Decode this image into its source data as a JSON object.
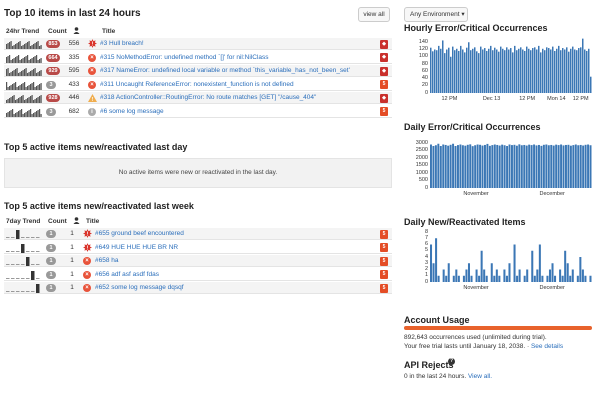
{
  "top10": {
    "title": "Top 10 items in last 24 hours",
    "view_all": "view all",
    "columns": {
      "trend": "24hr Trend",
      "count": "Count",
      "title": "Title"
    },
    "rows": [
      {
        "badge": "853",
        "count": "556",
        "level": "critical",
        "title": "#3 Hull breach!",
        "platform": "ruby"
      },
      {
        "badge": "664",
        "count": "335",
        "level": "error",
        "title": "#315 NoMethodError: undefined method `[]' for nil:NilClass",
        "platform": "ruby"
      },
      {
        "badge": "929",
        "count": "595",
        "level": "error",
        "title": "#317 NameError: undefined local variable or method `this_variable_has_not_been_set'",
        "platform": "ruby"
      },
      {
        "badge": "3",
        "count": "433",
        "level": "error",
        "title": "#311 Uncaught ReferenceError: nonexistent_function is not defined",
        "platform": "html5"
      },
      {
        "badge": "928",
        "count": "446",
        "level": "warning",
        "title": "#318 ActionController::RoutingError: No route matches [GET] \"/cause_404\"",
        "platform": "ruby"
      },
      {
        "badge": "3",
        "count": "682",
        "level": "info",
        "title": "#6 some log message",
        "platform": "html5"
      }
    ]
  },
  "top5_day": {
    "title": "Top 5 active items new/reactivated last day",
    "empty_text": "No active items were new or reactivated in the last day."
  },
  "top5_week": {
    "title": "Top 5 active items new/reactivated last week",
    "columns": {
      "trend": "7day Trend",
      "count": "Count",
      "title": "Title"
    },
    "rows": [
      {
        "badge": "1",
        "count": "1",
        "level": "critical",
        "title": "#655 ground beef encountered",
        "platform": "html5"
      },
      {
        "badge": "1",
        "count": "1",
        "level": "critical",
        "title": "#649 HUE HUE HUE BR NR",
        "platform": "html5"
      },
      {
        "badge": "1",
        "count": "1",
        "level": "error",
        "title": "#658 ha",
        "platform": "html5"
      },
      {
        "badge": "1",
        "count": "1",
        "level": "error",
        "title": "#656 adf asf asdf fdas",
        "platform": "html5"
      },
      {
        "badge": "1",
        "count": "1",
        "level": "error",
        "title": "#652 some log message dqsqf",
        "platform": "html5"
      }
    ]
  },
  "environment": {
    "label": "Any Environment",
    "caret": "▾"
  },
  "chart_data": [
    {
      "type": "bar",
      "title": "Hourly Error/Critical Occurrences",
      "ylim": [
        0,
        160
      ],
      "yticks": [
        0,
        20,
        40,
        60,
        80,
        100,
        120,
        140
      ],
      "xticks": [
        "12 PM",
        "Dec 13",
        "12 PM",
        "Mon 14",
        "12 PM"
      ],
      "values": [
        125,
        115,
        120,
        118,
        130,
        122,
        145,
        110,
        120,
        125,
        100,
        128,
        118,
        122,
        116,
        130,
        120,
        112,
        125,
        140,
        118,
        122,
        126,
        115,
        110,
        128,
        120,
        124,
        116,
        122,
        130,
        118,
        125,
        120,
        114,
        128,
        122,
        118,
        126,
        120,
        124,
        112,
        130,
        118,
        122,
        126,
        120,
        116,
        128,
        122,
        118,
        124,
        126,
        120,
        130,
        112,
        122,
        118,
        126,
        124,
        120,
        128,
        116,
        122,
        130,
        118,
        124,
        120,
        126,
        114,
        122,
        128,
        120,
        118,
        124,
        126,
        150,
        120,
        116,
        122,
        45
      ]
    },
    {
      "type": "bar",
      "title": "Daily Error/Critical Occurrences",
      "ylim": [
        0,
        3000
      ],
      "yticks": [
        0,
        500,
        1000,
        1500,
        2000,
        2500,
        3000
      ],
      "xticks": [
        "November",
        "December"
      ],
      "values": [
        2900,
        2800,
        2850,
        2950,
        2800,
        2900,
        2870,
        2820,
        2880,
        2950,
        2800,
        2860,
        2900,
        2850,
        2820,
        2880,
        2910,
        2790,
        2850,
        2900,
        2880,
        2830,
        2870,
        2940,
        2810,
        2860,
        2900,
        2870,
        2830,
        2890,
        2850,
        2800,
        2900,
        2860,
        2880,
        2820,
        2910,
        2850,
        2870,
        2830,
        2890,
        2860,
        2900,
        2840,
        2870,
        2810,
        2880,
        2900,
        2850,
        2870,
        2830,
        2890,
        2860,
        2900,
        2840,
        2870,
        2880,
        2820,
        2860,
        2900,
        2850,
        2870,
        2830,
        2880,
        2900,
        2850
      ]
    },
    {
      "type": "bar",
      "title": "Daily New/Reactivated Items",
      "ylim": [
        0,
        8
      ],
      "yticks": [
        0,
        1,
        2,
        3,
        4,
        5,
        6,
        7,
        8
      ],
      "xticks": [
        "November",
        "December"
      ],
      "values": [
        6,
        3,
        7,
        1,
        0,
        2,
        1,
        3,
        0,
        1,
        2,
        1,
        0,
        1,
        2,
        3,
        1,
        0,
        2,
        1,
        5,
        2,
        1,
        0,
        3,
        1,
        2,
        1,
        0,
        2,
        1,
        3,
        0,
        6,
        1,
        2,
        0,
        1,
        2,
        0,
        5,
        1,
        2,
        6,
        1,
        0,
        1,
        2,
        3,
        1,
        0,
        2,
        1,
        5,
        3,
        1,
        2,
        0,
        1,
        4,
        2,
        1,
        0,
        1
      ]
    }
  ],
  "account": {
    "title": "Account Usage",
    "bar_color": "#e8622c",
    "usage_pct": 100,
    "line1": "892,643 occurrences used (unlimited during trial).",
    "line2_prefix": "Your free trial lasts until January 18, 2038.",
    "line2_link": "See details"
  },
  "api_rejects": {
    "title": "API Rejects",
    "help_icon": "?",
    "text_prefix": "0 in the last 24 hours.",
    "link": "View all."
  },
  "colors": {
    "bar": "#3b77b5",
    "link": "#2a6ebb",
    "badge_red": "#b94a48",
    "badge_gray": "#999999"
  }
}
